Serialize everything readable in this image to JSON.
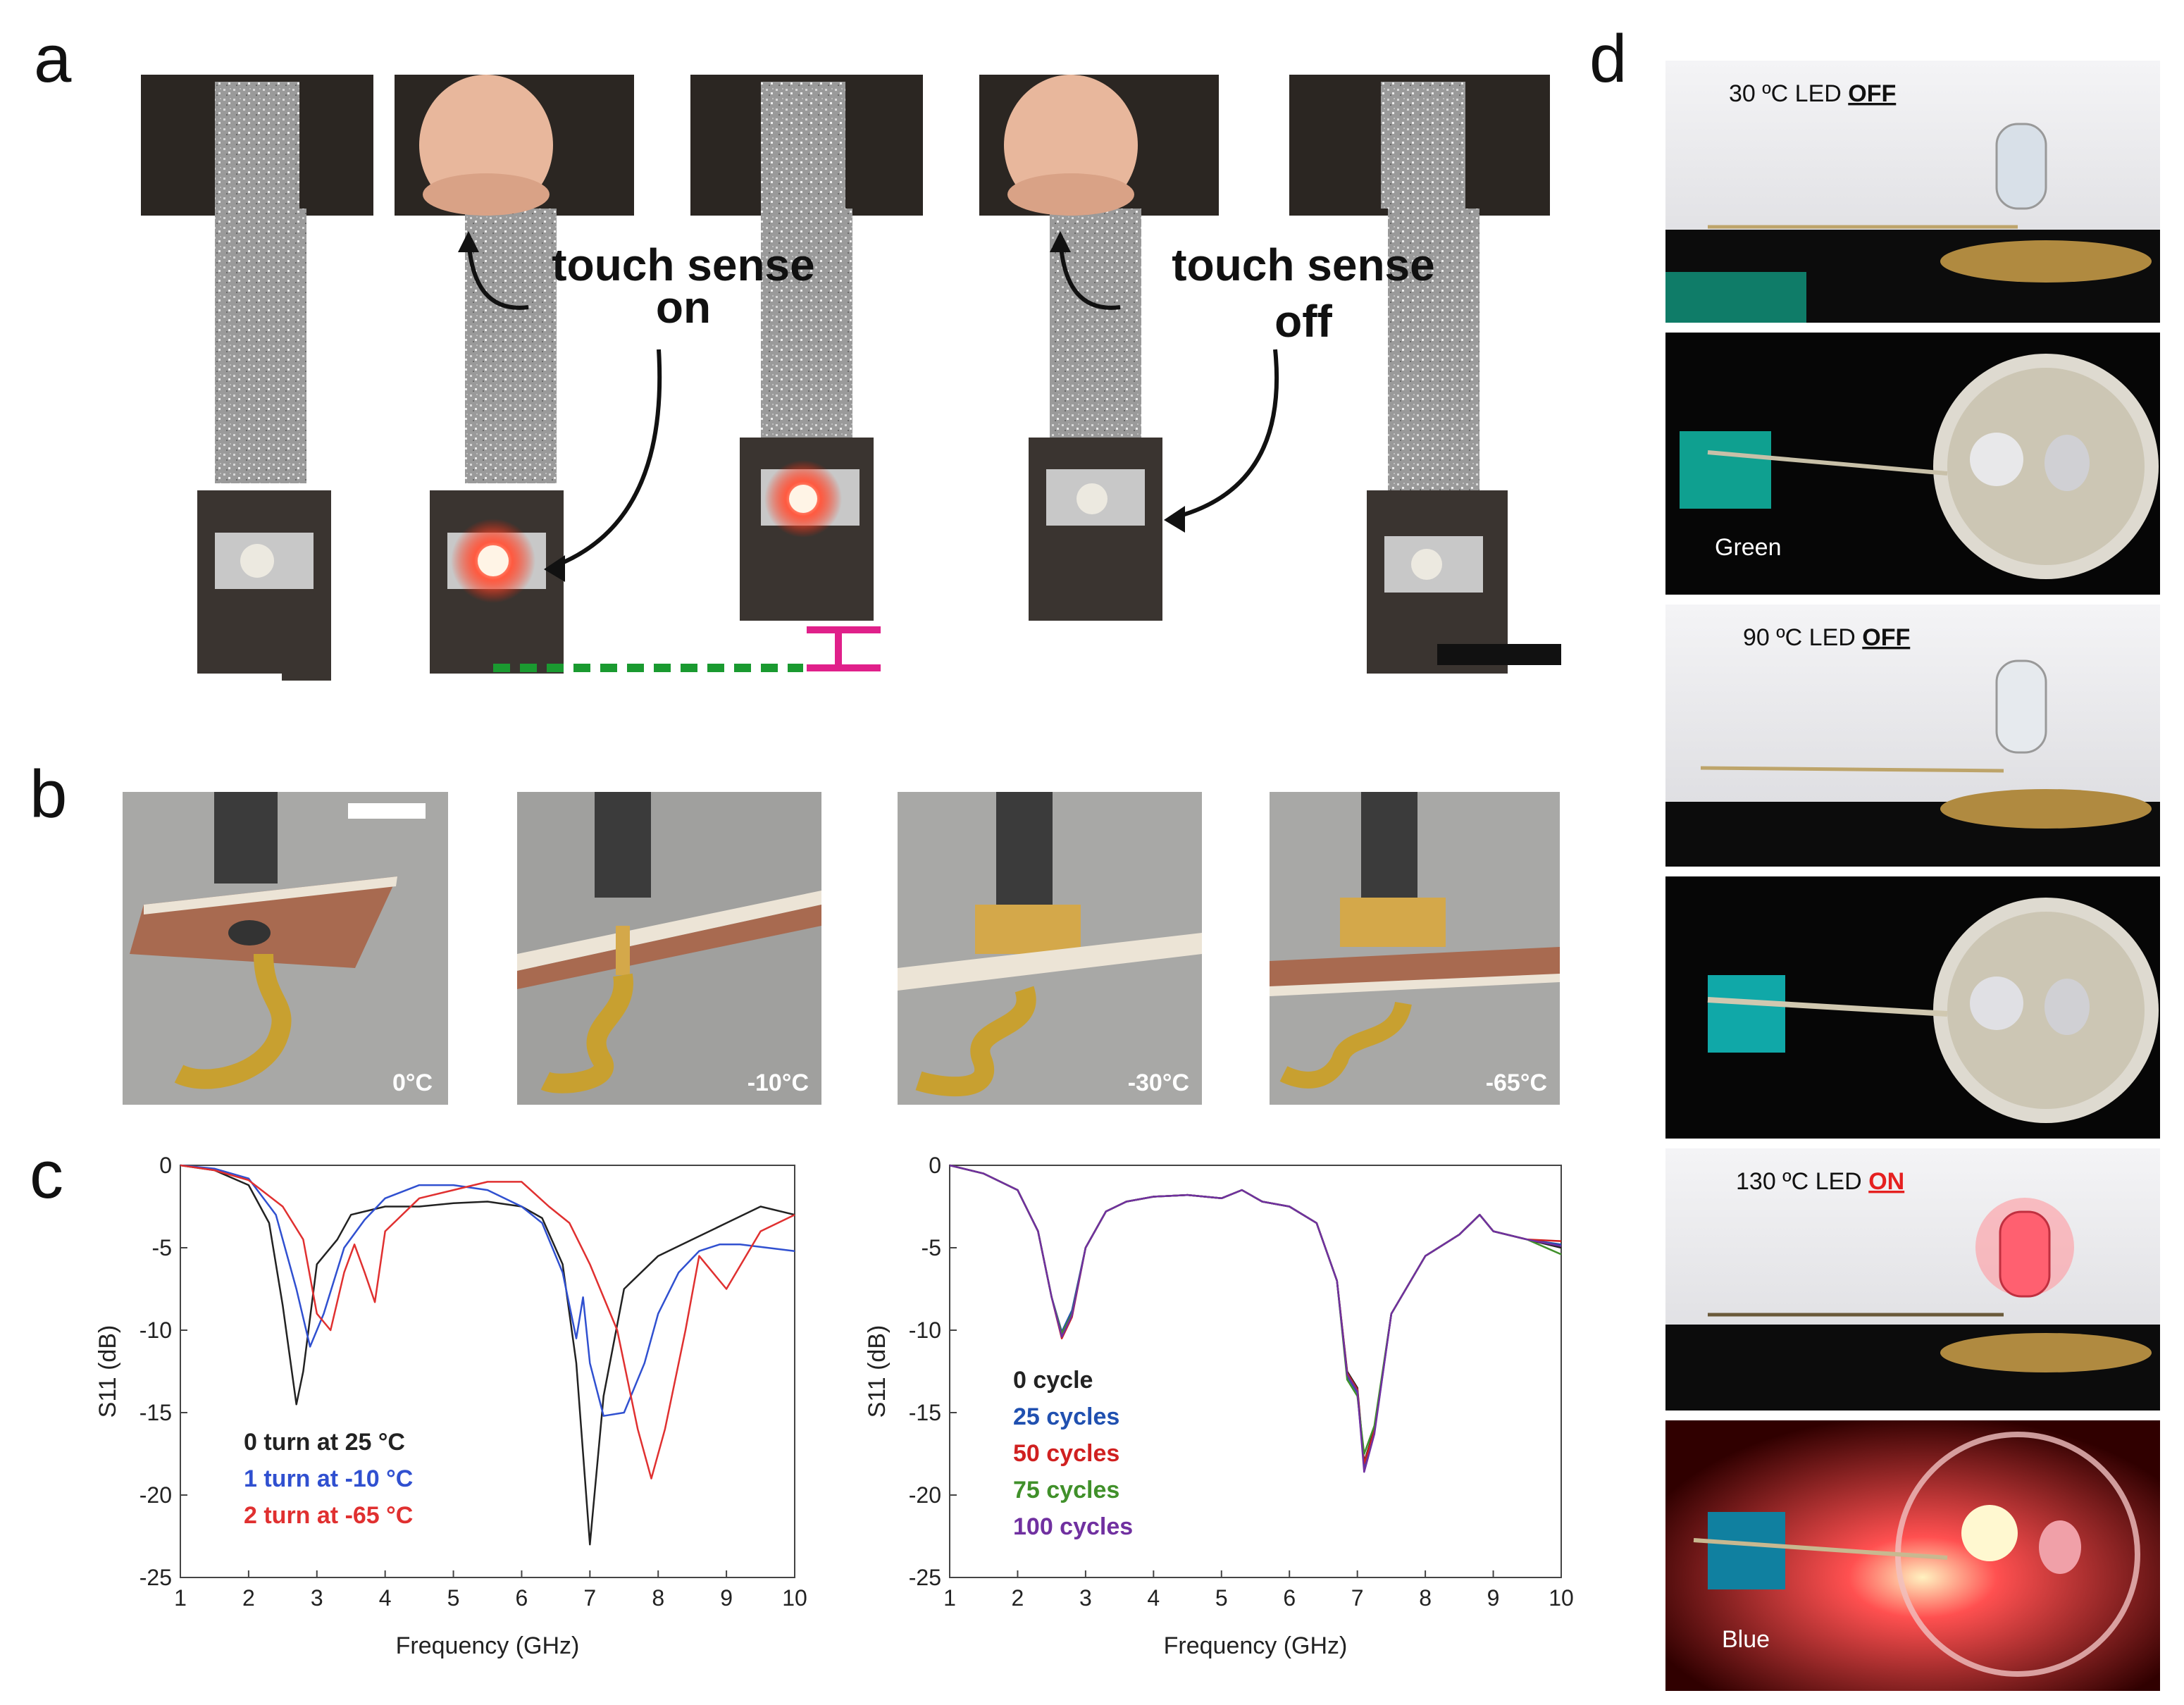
{
  "panels": {
    "a": {
      "label": "a",
      "annotation_on": [
        "touch sense",
        "on"
      ],
      "annotation_off": [
        "touch sense",
        "off"
      ]
    },
    "b": {
      "label": "b",
      "photo_labels": [
        "0°C",
        "-10°C",
        "-30°C",
        "-65°C"
      ]
    },
    "c": {
      "label": "c"
    },
    "d": {
      "label": "d",
      "rows": [
        {
          "caption_prefix": "30 ºC LED ",
          "caption_state": "OFF",
          "state_color": "#111111"
        },
        {
          "swatch_label": "Green",
          "swatch_color": "#0fa090"
        },
        {
          "caption_prefix": "90 ºC LED ",
          "caption_state": "OFF",
          "state_color": "#111111"
        },
        {
          "swatch_color": "#10a8a8"
        },
        {
          "caption_prefix": "130 ºC LED ",
          "caption_state": "ON",
          "state_color": "#e52020"
        },
        {
          "swatch_label": "Blue",
          "swatch_color": "#1080a0"
        }
      ]
    }
  },
  "chart_data": [
    {
      "type": "line",
      "xlabel": "Frequency (GHz)",
      "ylabel": "S11 (dB)",
      "xlim": [
        1,
        10
      ],
      "ylim": [
        -25,
        0
      ],
      "xticks": [
        "1",
        "2",
        "3",
        "4",
        "5",
        "6",
        "7",
        "8",
        "9",
        "10"
      ],
      "yticks": [
        "0",
        "-5",
        "-10",
        "-15",
        "-20",
        "-25"
      ],
      "series": [
        {
          "name": "0 turn at 25 °C",
          "color": "#222222",
          "x": [
            1,
            1.5,
            2,
            2.3,
            2.5,
            2.7,
            2.8,
            3.0,
            3.3,
            3.5,
            4,
            4.5,
            5,
            5.5,
            6,
            6.3,
            6.6,
            6.8,
            7.0,
            7.2,
            7.5,
            8,
            8.5,
            9,
            9.5,
            10
          ],
          "y": [
            0,
            -0.3,
            -1.2,
            -3.5,
            -8.5,
            -14.5,
            -12.5,
            -6,
            -4.5,
            -3,
            -2.5,
            -2.5,
            -2.3,
            -2.2,
            -2.5,
            -3.2,
            -6,
            -12,
            -23,
            -14,
            -7.5,
            -5.5,
            -4.5,
            -3.5,
            -2.5,
            -3
          ]
        },
        {
          "name": "1 turn at -10 °C",
          "color": "#3050d0",
          "x": [
            1,
            1.5,
            2,
            2.4,
            2.7,
            2.9,
            3.1,
            3.4,
            3.7,
            4,
            4.5,
            5,
            5.5,
            6,
            6.3,
            6.6,
            6.8,
            6.9,
            7.0,
            7.2,
            7.5,
            7.8,
            8,
            8.3,
            8.6,
            8.9,
            9.2,
            9.6,
            10
          ],
          "y": [
            0,
            -0.2,
            -0.8,
            -3,
            -7.5,
            -11,
            -9,
            -5,
            -3.3,
            -2,
            -1.2,
            -1.2,
            -1.5,
            -2.5,
            -3.5,
            -6.5,
            -10.5,
            -8,
            -12,
            -15.2,
            -15,
            -12,
            -9,
            -6.5,
            -5.2,
            -4.8,
            -4.8,
            -5,
            -5.2
          ]
        },
        {
          "name": "2 turn at -65 °C",
          "color": "#e03030",
          "x": [
            1,
            1.5,
            2,
            2.5,
            2.8,
            3.0,
            3.2,
            3.4,
            3.55,
            3.7,
            3.85,
            4.0,
            4.5,
            5,
            5.5,
            6,
            6.4,
            6.7,
            7.0,
            7.4,
            7.7,
            7.9,
            8.1,
            8.4,
            8.6,
            8.8,
            9.0,
            9.5,
            10
          ],
          "y": [
            0,
            -0.3,
            -0.9,
            -2.5,
            -4.5,
            -9,
            -10,
            -6.5,
            -4.8,
            -6.5,
            -8.3,
            -4,
            -2,
            -1.5,
            -1,
            -1,
            -2.5,
            -3.5,
            -6,
            -10,
            -16,
            -19,
            -16,
            -10,
            -5.5,
            -6.5,
            -7.5,
            -4,
            -3
          ]
        }
      ]
    },
    {
      "type": "line",
      "xlabel": "Frequency (GHz)",
      "ylabel": "S11 (dB)",
      "xlim": [
        1,
        10
      ],
      "ylim": [
        -25,
        0
      ],
      "xticks": [
        "1",
        "2",
        "3",
        "4",
        "5",
        "6",
        "7",
        "8",
        "9",
        "10"
      ],
      "yticks": [
        "0",
        "-5",
        "-10",
        "-15",
        "-20",
        "-25"
      ],
      "series": [
        {
          "name": "0 cycle",
          "color": "#222222",
          "x": [
            1,
            1.5,
            2,
            2.3,
            2.5,
            2.65,
            2.8,
            3.0,
            3.3,
            3.6,
            4,
            4.5,
            5,
            5.3,
            5.6,
            6,
            6.4,
            6.7,
            6.85,
            7.0,
            7.1,
            7.25,
            7.5,
            8,
            8.5,
            8.8,
            9.0,
            9.5,
            10
          ],
          "y": [
            0,
            -0.5,
            -1.5,
            -4,
            -8,
            -10.3,
            -9,
            -5,
            -2.8,
            -2.2,
            -1.9,
            -1.8,
            -2,
            -1.5,
            -2.2,
            -2.5,
            -3.5,
            -7,
            -12.5,
            -13.5,
            -18,
            -16,
            -9,
            -5.5,
            -4.2,
            -3,
            -4,
            -4.5,
            -5
          ]
        },
        {
          "name": "25 cycles",
          "color": "#2050b0",
          "x": [
            1,
            1.5,
            2,
            2.3,
            2.5,
            2.65,
            2.8,
            3.0,
            3.3,
            3.6,
            4,
            4.5,
            5,
            5.3,
            5.6,
            6,
            6.4,
            6.7,
            6.85,
            7.0,
            7.1,
            7.25,
            7.5,
            8,
            8.5,
            8.8,
            9.0,
            9.5,
            10
          ],
          "y": [
            0,
            -0.5,
            -1.5,
            -4,
            -8,
            -10.1,
            -8.8,
            -5,
            -2.8,
            -2.2,
            -1.9,
            -1.8,
            -2,
            -1.5,
            -2.2,
            -2.5,
            -3.5,
            -7,
            -12.8,
            -13.8,
            -18.3,
            -16.2,
            -9,
            -5.5,
            -4.2,
            -3,
            -4,
            -4.5,
            -4.8
          ]
        },
        {
          "name": "50 cycles",
          "color": "#d02020",
          "x": [
            1,
            1.5,
            2,
            2.3,
            2.5,
            2.65,
            2.8,
            3.0,
            3.3,
            3.6,
            4,
            4.5,
            5,
            5.3,
            5.6,
            6,
            6.4,
            6.7,
            6.85,
            7.0,
            7.1,
            7.25,
            7.5,
            8,
            8.5,
            8.8,
            9.0,
            9.5,
            10
          ],
          "y": [
            0,
            -0.5,
            -1.5,
            -4,
            -8,
            -10.5,
            -9.2,
            -5,
            -2.8,
            -2.2,
            -1.9,
            -1.8,
            -2,
            -1.5,
            -2.2,
            -2.5,
            -3.5,
            -7,
            -12.6,
            -13.6,
            -18.1,
            -16.1,
            -9,
            -5.5,
            -4.2,
            -3,
            -4,
            -4.5,
            -4.6
          ]
        },
        {
          "name": "75 cycles",
          "color": "#40902a",
          "x": [
            1,
            1.5,
            2,
            2.3,
            2.5,
            2.65,
            2.8,
            3.0,
            3.3,
            3.6,
            4,
            4.5,
            5,
            5.3,
            5.6,
            6,
            6.4,
            6.7,
            6.85,
            7.0,
            7.1,
            7.25,
            7.5,
            8,
            8.5,
            8.8,
            9.0,
            9.5,
            10
          ],
          "y": [
            0,
            -0.5,
            -1.5,
            -4,
            -8,
            -10.2,
            -9,
            -5,
            -2.8,
            -2.2,
            -1.9,
            -1.8,
            -2,
            -1.5,
            -2.2,
            -2.5,
            -3.5,
            -7,
            -13,
            -14,
            -17.5,
            -15.8,
            -9,
            -5.5,
            -4.2,
            -3,
            -4,
            -4.5,
            -5.4
          ]
        },
        {
          "name": "100 cycles",
          "color": "#7030a0",
          "x": [
            1,
            1.5,
            2,
            2.3,
            2.5,
            2.65,
            2.8,
            3.0,
            3.3,
            3.6,
            4,
            4.5,
            5,
            5.3,
            5.6,
            6,
            6.4,
            6.7,
            6.85,
            7.0,
            7.1,
            7.25,
            7.5,
            8,
            8.5,
            8.8,
            9.0,
            9.5,
            10
          ],
          "y": [
            0,
            -0.5,
            -1.5,
            -4,
            -8,
            -10.4,
            -9.1,
            -5,
            -2.8,
            -2.2,
            -1.9,
            -1.8,
            -2,
            -1.5,
            -2.2,
            -2.5,
            -3.5,
            -7,
            -12.7,
            -13.7,
            -18.6,
            -16.3,
            -9,
            -5.5,
            -4.2,
            -3,
            -4,
            -4.5,
            -4.9
          ]
        }
      ]
    }
  ]
}
